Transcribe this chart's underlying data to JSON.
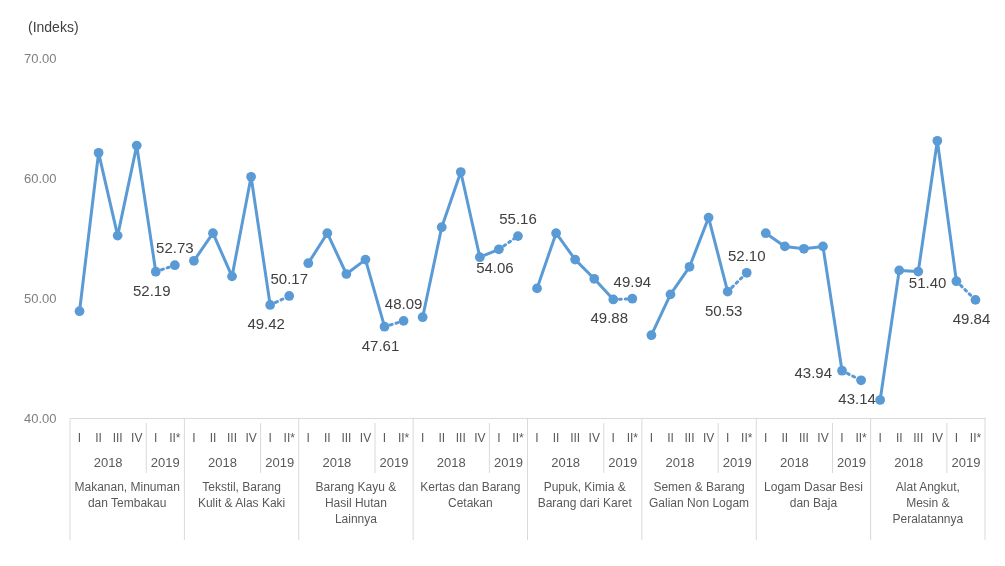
{
  "chart_data": {
    "type": "line",
    "ylabel": "(Indeks)",
    "categories": [
      "I",
      "II",
      "III",
      "IV",
      "I",
      "II*",
      "I",
      "II",
      "III",
      "IV",
      "I",
      "II*",
      "I",
      "II",
      "III",
      "IV",
      "I",
      "II*",
      "I",
      "II",
      "III",
      "IV",
      "I",
      "II*",
      "I",
      "II",
      "III",
      "IV",
      "I",
      "II*",
      "I",
      "II",
      "III",
      "IV",
      "I",
      "II*",
      "I",
      "II",
      "III",
      "IV",
      "I",
      "II*",
      "I",
      "II",
      "III",
      "IV",
      "I",
      "II*"
    ],
    "series": [
      {
        "color": "#5b9bd5",
        "line_style": "solid",
        "values": [
          48.9,
          62.1,
          55.2,
          62.7,
          52.19,
          null,
          null,
          null,
          null,
          null,
          null,
          null,
          null,
          null,
          null,
          null,
          null,
          null,
          null,
          null,
          null,
          null,
          null,
          null,
          null,
          null,
          null,
          null,
          null,
          null,
          null,
          null,
          null,
          null,
          null,
          null,
          null,
          null,
          null,
          null,
          null,
          null,
          null,
          null,
          null,
          null,
          null,
          null
        ]
      },
      {
        "color": "#5b9bd5",
        "line_style": "solid",
        "values": [
          null,
          null,
          null,
          null,
          null,
          null,
          53.1,
          55.4,
          51.8,
          60.1,
          49.42,
          null,
          null,
          null,
          null,
          null,
          null,
          null,
          null,
          null,
          null,
          null,
          null,
          null,
          null,
          null,
          null,
          null,
          null,
          null,
          null,
          null,
          null,
          null,
          null,
          null,
          null,
          null,
          null,
          null,
          null,
          null,
          null,
          null,
          null,
          null,
          null,
          null
        ]
      },
      {
        "color": "#5b9bd5",
        "line_style": "solid",
        "values": [
          null,
          null,
          null,
          null,
          null,
          null,
          null,
          null,
          null,
          null,
          null,
          null,
          52.9,
          55.4,
          52.0,
          53.2,
          47.61,
          null,
          null,
          null,
          null,
          null,
          null,
          null,
          null,
          null,
          null,
          null,
          null,
          null,
          null,
          null,
          null,
          null,
          null,
          null,
          null,
          null,
          null,
          null,
          null,
          null,
          null,
          null,
          null,
          null,
          null,
          null
        ]
      },
      {
        "color": "#5b9bd5",
        "line_style": "solid",
        "values": [
          null,
          null,
          null,
          null,
          null,
          null,
          null,
          null,
          null,
          null,
          null,
          null,
          null,
          null,
          null,
          null,
          null,
          null,
          48.4,
          55.9,
          60.5,
          53.4,
          54.06,
          null,
          null,
          null,
          null,
          null,
          null,
          null,
          null,
          null,
          null,
          null,
          null,
          null,
          null,
          null,
          null,
          null,
          null,
          null,
          null,
          null,
          null,
          null,
          null,
          null
        ]
      },
      {
        "color": "#5b9bd5",
        "line_style": "solid",
        "values": [
          null,
          null,
          null,
          null,
          null,
          null,
          null,
          null,
          null,
          null,
          null,
          null,
          null,
          null,
          null,
          null,
          null,
          null,
          null,
          null,
          null,
          null,
          null,
          null,
          50.8,
          55.4,
          53.2,
          51.6,
          49.88,
          null,
          null,
          null,
          null,
          null,
          null,
          null,
          null,
          null,
          null,
          null,
          null,
          null,
          null,
          null,
          null,
          null,
          null,
          null
        ]
      },
      {
        "color": "#5b9bd5",
        "line_style": "solid",
        "values": [
          null,
          null,
          null,
          null,
          null,
          null,
          null,
          null,
          null,
          null,
          null,
          null,
          null,
          null,
          null,
          null,
          null,
          null,
          null,
          null,
          null,
          null,
          null,
          null,
          null,
          null,
          null,
          null,
          null,
          null,
          46.9,
          50.3,
          52.6,
          56.7,
          50.53,
          null,
          null,
          null,
          null,
          null,
          null,
          null,
          null,
          null,
          null,
          null,
          null,
          null
        ]
      },
      {
        "color": "#5b9bd5",
        "line_style": "solid",
        "values": [
          null,
          null,
          null,
          null,
          null,
          null,
          null,
          null,
          null,
          null,
          null,
          null,
          null,
          null,
          null,
          null,
          null,
          null,
          null,
          null,
          null,
          null,
          null,
          null,
          null,
          null,
          null,
          null,
          null,
          null,
          null,
          null,
          null,
          null,
          null,
          null,
          55.4,
          54.3,
          54.1,
          54.3,
          43.94,
          null,
          null,
          null,
          null,
          null,
          null,
          null
        ]
      },
      {
        "color": "#5b9bd5",
        "line_style": "solid",
        "values": [
          null,
          null,
          null,
          null,
          null,
          null,
          null,
          null,
          null,
          null,
          null,
          null,
          null,
          null,
          null,
          null,
          null,
          null,
          null,
          null,
          null,
          null,
          null,
          null,
          null,
          null,
          null,
          null,
          null,
          null,
          null,
          null,
          null,
          null,
          null,
          null,
          null,
          null,
          null,
          null,
          null,
          null,
          41.5,
          52.3,
          52.2,
          63.1,
          51.4,
          null
        ]
      },
      {
        "color": "#5a9ad4",
        "line_style": "dotted",
        "values": [
          null,
          null,
          null,
          null,
          52.19,
          52.73,
          null,
          null,
          null,
          null,
          49.42,
          50.17,
          null,
          null,
          null,
          null,
          47.61,
          48.09,
          null,
          null,
          null,
          null,
          54.06,
          55.16,
          null,
          null,
          null,
          null,
          49.88,
          49.94,
          null,
          null,
          null,
          null,
          50.53,
          52.1,
          null,
          null,
          null,
          null,
          43.94,
          43.14,
          null,
          null,
          null,
          null,
          51.4,
          49.84
        ],
        "value_labels": [
          null,
          null,
          null,
          null,
          "52.19",
          "52.73",
          null,
          null,
          null,
          null,
          "49.42",
          "50.17",
          null,
          null,
          null,
          null,
          "47.61",
          "48.09",
          null,
          null,
          null,
          null,
          "54.06",
          "55.16",
          null,
          null,
          null,
          null,
          "49.88",
          "49.94",
          null,
          null,
          null,
          null,
          "50.53",
          "52.10",
          null,
          null,
          null,
          null,
          "43.94",
          "43.14",
          null,
          null,
          null,
          null,
          "51.40",
          "49.84"
        ]
      }
    ],
    "ylim": [
      40,
      70
    ],
    "yticks": [
      {
        "value": 40,
        "label": "40.00"
      },
      {
        "value": 50,
        "label": "50.00"
      },
      {
        "value": 60,
        "label": "60.00"
      },
      {
        "value": 70,
        "label": "70.00"
      }
    ],
    "marker": "circle",
    "grid": false,
    "annotations": [
      "2018",
      "2019",
      "2018",
      "2019",
      "2018",
      "2019",
      "2018",
      "2019",
      "2018",
      "2019",
      "2018",
      "2019",
      "2018",
      "2019",
      "2018",
      "2019",
      "Makanan, Minuman dan Tembakau",
      "Tekstil, Barang Kulit & Alas Kaki",
      "Barang Kayu & Hasil Hutan Lainnya",
      "Kertas dan Barang Cetakan",
      "Pupuk, Kimia & Barang dari Karet",
      "Semen & Barang Galian Non Logam",
      "Logam Dasar Besi dan Baja",
      "Alat Angkut, Mesin & Peralatannya"
    ]
  }
}
